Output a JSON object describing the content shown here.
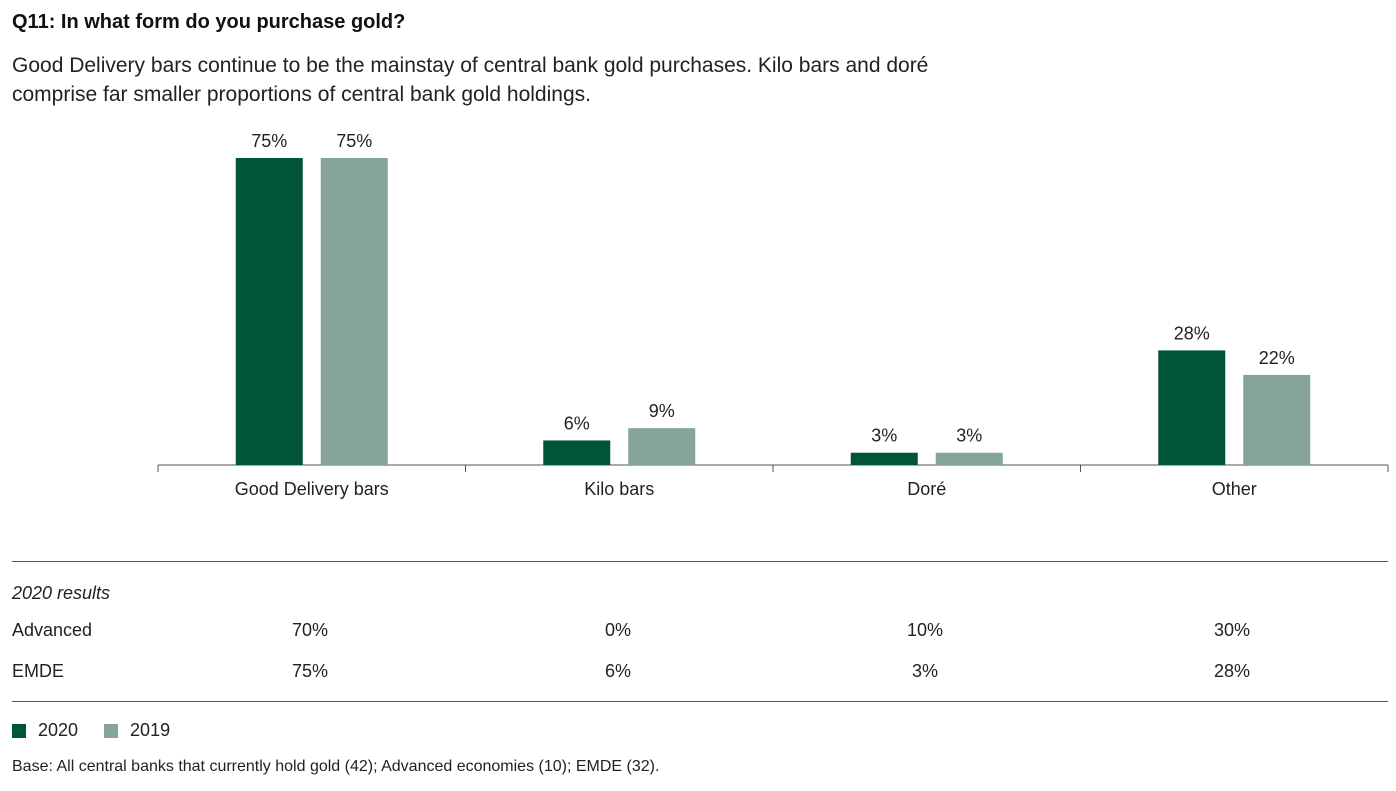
{
  "title": "Q11: In what form do you purchase gold?",
  "subtitle": "Good Delivery bars continue to be the mainstay of central bank gold purchases. Kilo bars and doré comprise far smaller proportions of central bank gold holdings.",
  "colors": {
    "s2020": "#005439",
    "s2019": "#86a598",
    "axis": "#555555"
  },
  "chart_data": {
    "type": "bar",
    "categories": [
      "Good Delivery bars",
      "Kilo bars",
      "Doré",
      "Other"
    ],
    "series": [
      {
        "name": "2020",
        "values": [
          75,
          6,
          3,
          28
        ],
        "labels": [
          "75%",
          "6%",
          "3%",
          "28%"
        ]
      },
      {
        "name": "2019",
        "values": [
          75,
          9,
          3,
          22
        ],
        "labels": [
          "75%",
          "9%",
          "3%",
          "22%"
        ]
      }
    ],
    "ylim": [
      0,
      80
    ],
    "grid": false,
    "legend": "bottom-left"
  },
  "table": {
    "heading": "2020 results",
    "rows": [
      {
        "label": "Advanced",
        "values": [
          "70%",
          "0%",
          "10%",
          "30%"
        ]
      },
      {
        "label": "EMDE",
        "values": [
          "75%",
          "6%",
          "3%",
          "28%"
        ]
      }
    ]
  },
  "legend": [
    {
      "label": "2020",
      "color": "#005439"
    },
    {
      "label": "2019",
      "color": "#86a598"
    }
  ],
  "base_note": "Base: All central banks that currently hold gold (42); Advanced economies (10); EMDE (32)."
}
